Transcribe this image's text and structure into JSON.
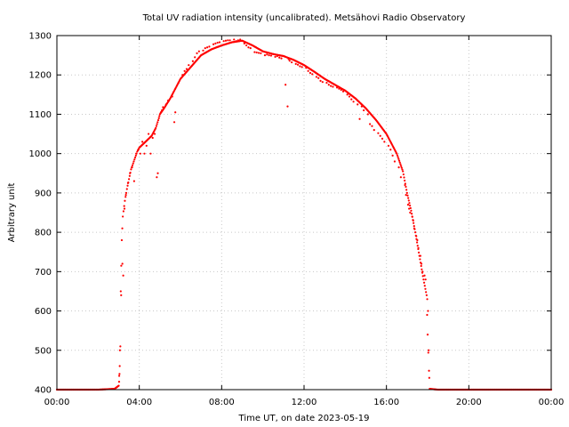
{
  "chart_data": {
    "type": "scatter",
    "title": "Total UV radiation intensity (uncalibrated). Metsähovi Radio Observatory",
    "xlabel": "Time UT, on date 2023-05-19",
    "ylabel": "Arbitrary unit",
    "xlim": [
      0,
      24
    ],
    "ylim": [
      400,
      1300
    ],
    "x_tick_values": [
      0,
      4,
      8,
      12,
      16,
      20,
      24
    ],
    "x_tick_labels": [
      "00:00",
      "04:00",
      "08:00",
      "12:00",
      "16:00",
      "20:00",
      "00:00"
    ],
    "y_tick_values": [
      400,
      500,
      600,
      700,
      800,
      900,
      1000,
      1100,
      1200,
      1300
    ],
    "y_tick_labels": [
      "400",
      "500",
      "600",
      "700",
      "800",
      "900",
      "1000",
      "1100",
      "1200",
      "1300"
    ],
    "grid": true,
    "legend": "none",
    "marker_color": "#ff0000",
    "series": [
      {
        "x": [
          0,
          1,
          2,
          2.8,
          3.0,
          3.05,
          3.08,
          3.1,
          3.15,
          3.2,
          3.3,
          3.4,
          3.5,
          3.6,
          3.7,
          3.8,
          3.9,
          4.0,
          4.2,
          4.4,
          4.6,
          4.8,
          4.95,
          5.0,
          5.2,
          5.5,
          5.8,
          6.0,
          6.5,
          7.0,
          7.5,
          8.0,
          8.5,
          9.0,
          9.5,
          10.0,
          10.5,
          11.0,
          11.5,
          12.0,
          12.5,
          13.0,
          13.5,
          14.0,
          14.5,
          15.0,
          15.5,
          16.0,
          16.5,
          16.8,
          17.0,
          17.2,
          17.4,
          17.6,
          17.8,
          17.95,
          18.0,
          18.1,
          18.5,
          19,
          20,
          21,
          22,
          23,
          24
        ],
        "y": [
          400,
          400,
          400,
          402,
          410,
          460,
          510,
          650,
          780,
          840,
          880,
          910,
          935,
          960,
          975,
          990,
          1005,
          1015,
          1025,
          1035,
          1045,
          1065,
          1090,
          1100,
          1115,
          1140,
          1170,
          1190,
          1220,
          1250,
          1265,
          1275,
          1283,
          1287,
          1275,
          1260,
          1253,
          1248,
          1238,
          1225,
          1208,
          1190,
          1175,
          1160,
          1140,
          1115,
          1085,
          1050,
          1000,
          955,
          900,
          855,
          800,
          740,
          680,
          640,
          540,
          402,
          400,
          400,
          400,
          400,
          400,
          400,
          400
        ]
      },
      {
        "x": [
          3.02,
          3.04,
          3.06,
          3.12,
          3.18,
          3.22,
          3.28,
          3.35,
          3.45,
          3.55,
          3.65,
          3.75,
          3.85,
          3.95,
          4.05,
          4.15,
          4.25,
          4.35,
          4.45,
          4.55,
          4.65,
          4.75,
          4.85,
          4.9,
          5.05,
          5.1,
          5.15,
          5.3,
          5.4,
          5.6,
          5.7,
          5.75,
          5.9,
          6.1,
          6.2,
          6.3,
          6.4,
          6.6,
          6.7,
          6.8,
          6.9,
          7.1,
          7.2,
          7.3,
          7.4,
          7.6,
          7.7,
          7.8,
          7.9,
          8.1,
          8.2,
          8.3,
          8.4,
          8.6,
          8.7,
          8.8,
          8.9,
          9.1,
          9.2,
          9.3,
          9.4,
          9.6,
          9.7,
          9.8,
          9.9,
          10.1,
          10.2,
          10.3,
          10.4,
          10.6,
          10.7,
          10.8,
          10.9,
          11.1,
          11.2,
          11.25,
          11.3,
          11.4,
          11.6,
          11.7,
          11.8,
          11.9,
          12.1,
          12.2,
          12.3,
          12.4,
          12.6,
          12.7,
          12.8,
          12.9,
          13.1,
          13.2,
          13.3,
          13.4,
          13.6,
          13.7,
          13.8,
          13.9,
          14.1,
          14.2,
          14.3,
          14.4,
          14.6,
          14.7,
          14.8,
          14.9,
          15.1,
          15.2,
          15.3,
          15.4,
          15.6,
          15.7,
          15.8,
          15.9,
          16.1,
          16.2,
          16.3,
          16.4,
          16.6,
          16.7,
          16.9,
          16.95,
          17.05,
          17.1,
          17.15,
          17.25,
          17.3,
          17.35,
          17.45,
          17.5,
          17.55,
          17.65,
          17.7,
          17.75,
          17.85,
          17.9,
          17.98,
          18.02,
          18.05,
          18.08
        ],
        "y": [
          420,
          440,
          500,
          640,
          720,
          690,
          860,
          895,
          925,
          950,
          965,
          930,
          1000,
          1010,
          1000,
          1030,
          1000,
          1020,
          1050,
          1000,
          1040,
          1050,
          940,
          950,
          1105,
          1110,
          1118,
          1125,
          1135,
          1145,
          1080,
          1105,
          1180,
          1200,
          1210,
          1215,
          1225,
          1235,
          1245,
          1255,
          1260,
          1262,
          1268,
          1270,
          1272,
          1278,
          1280,
          1282,
          1283,
          1286,
          1287,
          1288,
          1288,
          1290,
          1286,
          1288,
          1290,
          1280,
          1275,
          1270,
          1268,
          1258,
          1257,
          1256,
          1255,
          1250,
          1252,
          1250,
          1249,
          1246,
          1248,
          1244,
          1242,
          1175,
          1120,
          1240,
          1236,
          1232,
          1228,
          1226,
          1222,
          1220,
          1218,
          1210,
          1205,
          1202,
          1195,
          1192,
          1185,
          1182,
          1180,
          1175,
          1172,
          1170,
          1168,
          1165,
          1162,
          1158,
          1150,
          1145,
          1138,
          1132,
          1125,
          1088,
          1120,
          1110,
          1100,
          1075,
          1070,
          1060,
          1052,
          1045,
          1038,
          1030,
          1020,
          1010,
          995,
          980,
          965,
          940,
          920,
          895,
          870,
          860,
          850,
          840,
          830,
          810,
          790,
          780,
          760,
          740,
          720,
          700,
          690,
          680,
          630,
          600,
          500,
          430
        ]
      }
    ]
  }
}
